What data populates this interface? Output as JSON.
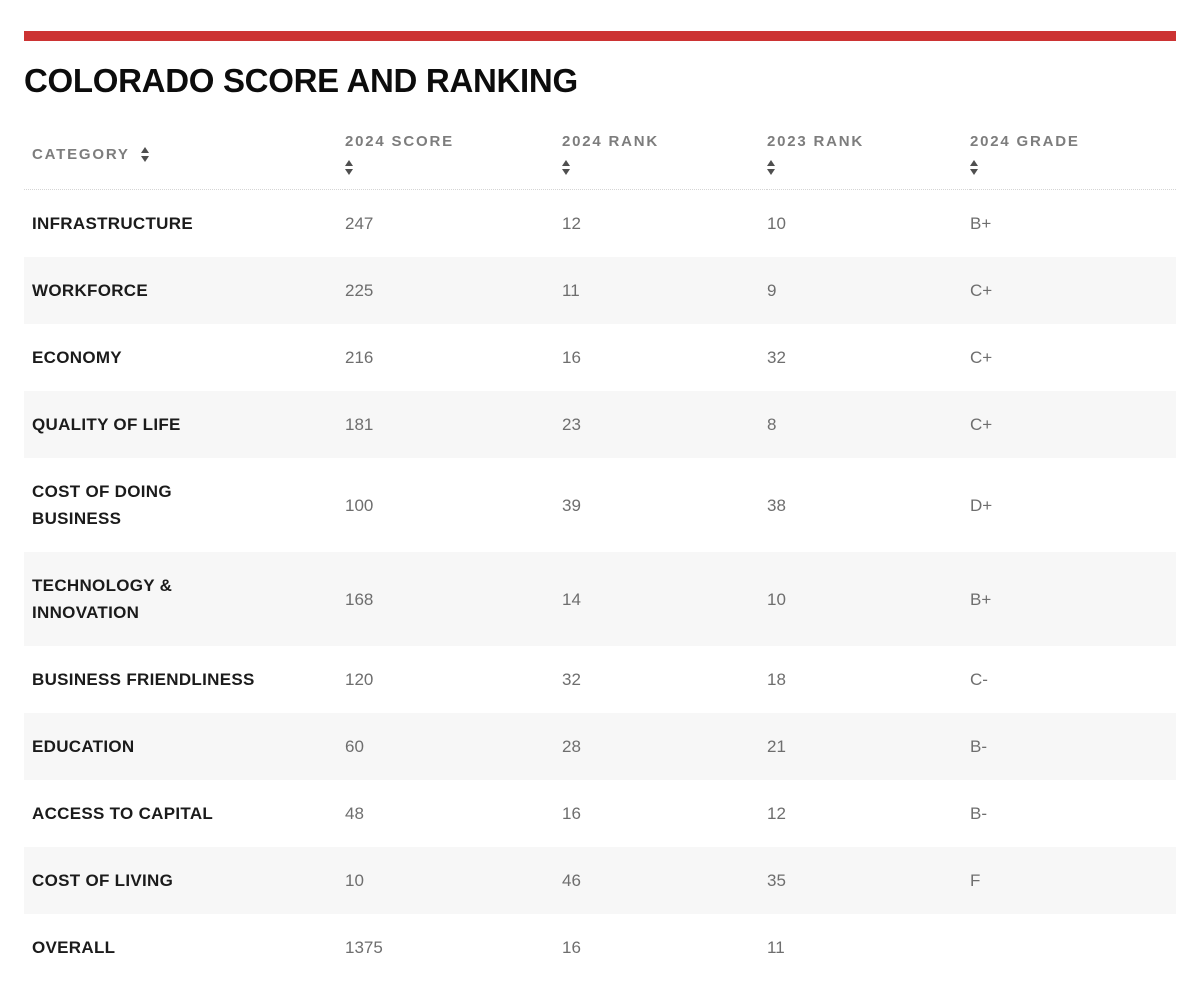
{
  "page": {
    "title": "COLORADO SCORE AND RANKING",
    "accent_color": "#cc3333",
    "stripe_color": "#f7f7f7"
  },
  "chart_data": {
    "type": "table",
    "title": "COLORADO SCORE AND RANKING",
    "columns": [
      {
        "key": "category",
        "label": "CATEGORY",
        "sortable": true
      },
      {
        "key": "score_2024",
        "label": "2024 SCORE",
        "sortable": true
      },
      {
        "key": "rank_2024",
        "label": "2024 RANK",
        "sortable": true
      },
      {
        "key": "rank_2023",
        "label": "2023 RANK",
        "sortable": true
      },
      {
        "key": "grade_2024",
        "label": "2024 GRADE",
        "sortable": true
      }
    ],
    "rows": [
      {
        "category": "INFRASTRUCTURE",
        "score_2024": "247",
        "rank_2024": "12",
        "rank_2023": "10",
        "grade_2024": "B+"
      },
      {
        "category": "WORKFORCE",
        "score_2024": "225",
        "rank_2024": "11",
        "rank_2023": "9",
        "grade_2024": "C+"
      },
      {
        "category": "ECONOMY",
        "score_2024": "216",
        "rank_2024": "16",
        "rank_2023": "32",
        "grade_2024": "C+"
      },
      {
        "category": "QUALITY OF LIFE",
        "score_2024": "181",
        "rank_2024": "23",
        "rank_2023": "8",
        "grade_2024": "C+"
      },
      {
        "category": "COST OF DOING BUSINESS",
        "score_2024": "100",
        "rank_2024": "39",
        "rank_2023": "38",
        "grade_2024": "D+"
      },
      {
        "category": "TECHNOLOGY & INNOVATION",
        "score_2024": "168",
        "rank_2024": "14",
        "rank_2023": "10",
        "grade_2024": "B+"
      },
      {
        "category": "BUSINESS FRIENDLINESS",
        "score_2024": "120",
        "rank_2024": "32",
        "rank_2023": "18",
        "grade_2024": "C-"
      },
      {
        "category": "EDUCATION",
        "score_2024": "60",
        "rank_2024": "28",
        "rank_2023": "21",
        "grade_2024": "B-"
      },
      {
        "category": "ACCESS TO CAPITAL",
        "score_2024": "48",
        "rank_2024": "16",
        "rank_2023": "12",
        "grade_2024": "B-"
      },
      {
        "category": "COST OF LIVING",
        "score_2024": "10",
        "rank_2024": "46",
        "rank_2023": "35",
        "grade_2024": "F"
      },
      {
        "category": "OVERALL",
        "score_2024": "1375",
        "rank_2024": "16",
        "rank_2023": "11",
        "grade_2024": ""
      }
    ]
  }
}
